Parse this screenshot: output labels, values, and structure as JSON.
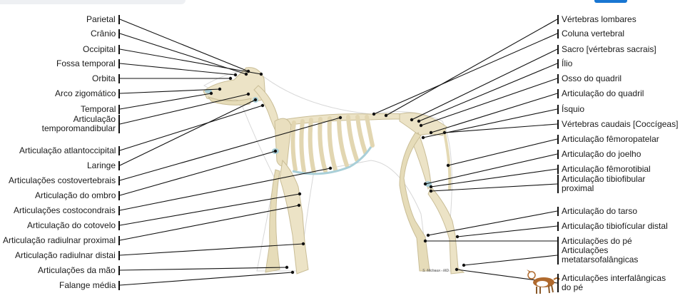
{
  "colors": {
    "bone": "#ece3c6",
    "bone_edge": "#c9bd96",
    "cartilage": "#a9cfd8",
    "line": "#111111",
    "dot": "#111111"
  },
  "left_labels": [
    {
      "text": "Parietal"
    },
    {
      "text": "Crânio"
    },
    {
      "text": "Occipital"
    },
    {
      "text": "Fossa temporal"
    },
    {
      "text": "Orbita"
    },
    {
      "text": "Arco zigomático"
    },
    {
      "text": "Temporal"
    },
    {
      "text": "Articulação temporomandibular"
    },
    {
      "text": "Articulação atlantoccipital"
    },
    {
      "text": "Laringe"
    },
    {
      "text": "Articulações costovertebrais"
    },
    {
      "text": "Articulação do ombro"
    },
    {
      "text": "Articulações costocondrais"
    },
    {
      "text": "Articulação do cotovelo"
    },
    {
      "text": "Articulação radiulnar proximal"
    },
    {
      "text": "Articulação radiulnar distai"
    },
    {
      "text": "Articulações da mão"
    },
    {
      "text": "Falange média"
    }
  ],
  "right_labels": [
    {
      "text": "Vértebras lombares"
    },
    {
      "text": "Coluna vertebral"
    },
    {
      "text": "Sacro [vértebras sacrais]"
    },
    {
      "text": "Ílio"
    },
    {
      "text": "Osso do quadril"
    },
    {
      "text": "Articulação do quadril"
    },
    {
      "text": "Ísquio"
    },
    {
      "text": "Vértebras caudais [Coccígeas]"
    },
    {
      "text": "Articulação fêmoropatelar"
    },
    {
      "text": "Articulação do joelho"
    },
    {
      "text": "Articulação fêmorotibial"
    },
    {
      "text": "Articulação tibiofibular proximal"
    },
    {
      "text": "Articulação do tarso"
    },
    {
      "text": "Articulação tibiofícular distal"
    },
    {
      "text": "Articulações do pé"
    },
    {
      "text": "Articulações metatarsofalângicas"
    },
    {
      "text": "Articulações interfalângicas do pé"
    }
  ],
  "credit": "S. Michaux · MD"
}
